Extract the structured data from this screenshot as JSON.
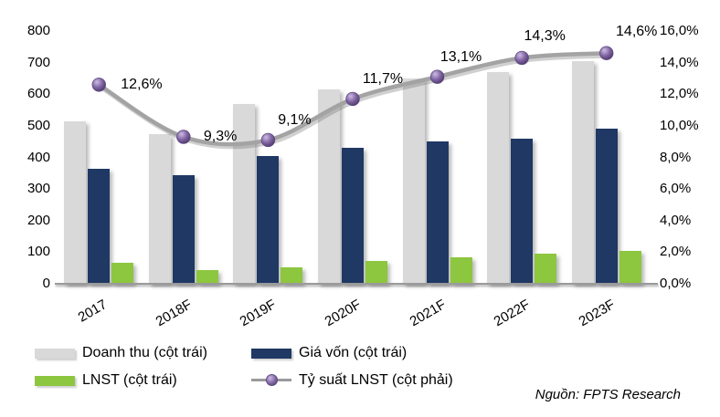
{
  "chart_data": {
    "type": "bar",
    "subtype": "bar-line-combo",
    "categories": [
      "2017",
      "2018F",
      "2019F",
      "2020F",
      "2021F",
      "2022F",
      "2023F"
    ],
    "series": [
      {
        "name": "Doanh thu (cột trái)",
        "type": "bar",
        "axis": "left",
        "color": "#D9D9D9",
        "values": [
          515,
          475,
          570,
          615,
          650,
          670,
          705
        ]
      },
      {
        "name": "Giá vốn (cột trái)",
        "type": "bar",
        "axis": "left",
        "color": "#1F3864",
        "values": [
          365,
          345,
          405,
          430,
          450,
          460,
          490
        ]
      },
      {
        "name": "LNST (cột trái)",
        "type": "bar",
        "axis": "left",
        "color": "#8DC63F",
        "values": [
          65,
          44,
          52,
          72,
          85,
          96,
          103
        ]
      },
      {
        "name": "Tỷ suất LNST (cột phải)",
        "type": "line",
        "axis": "right",
        "color": "#A3A3A3",
        "marker_color": "#8064A2",
        "values": [
          12.6,
          9.3,
          9.1,
          11.7,
          13.1,
          14.3,
          14.6
        ],
        "labels": [
          "12,6%",
          "9,3%",
          "9,1%",
          "11,7%",
          "13,1%",
          "14,3%",
          "14,6%"
        ]
      }
    ],
    "left_axis": {
      "min": 0,
      "max": 800,
      "step": 100,
      "ticks": [
        "0",
        "100",
        "200",
        "300",
        "400",
        "500",
        "600",
        "700",
        "800"
      ]
    },
    "right_axis": {
      "min": 0,
      "max": 16,
      "step": 2,
      "ticks": [
        "0,0%",
        "2,0%",
        "4,0%",
        "6,0%",
        "8,0%",
        "10,0%",
        "12,0%",
        "14,0%",
        "16,0%"
      ]
    },
    "grid": false,
    "legend_position": "bottom",
    "title": ""
  },
  "legend": {
    "items": [
      {
        "label": "Doanh thu (cột trái)",
        "swatch": "gray-bar"
      },
      {
        "label": "Giá vốn (cột trái)",
        "swatch": "navy-bar"
      },
      {
        "label": "LNST (cột trái)",
        "swatch": "green-bar"
      },
      {
        "label": "Tỷ suất LNST (cột phải)",
        "swatch": "line-marker"
      }
    ]
  },
  "source": {
    "text": "Nguồn: FPTS Research"
  }
}
